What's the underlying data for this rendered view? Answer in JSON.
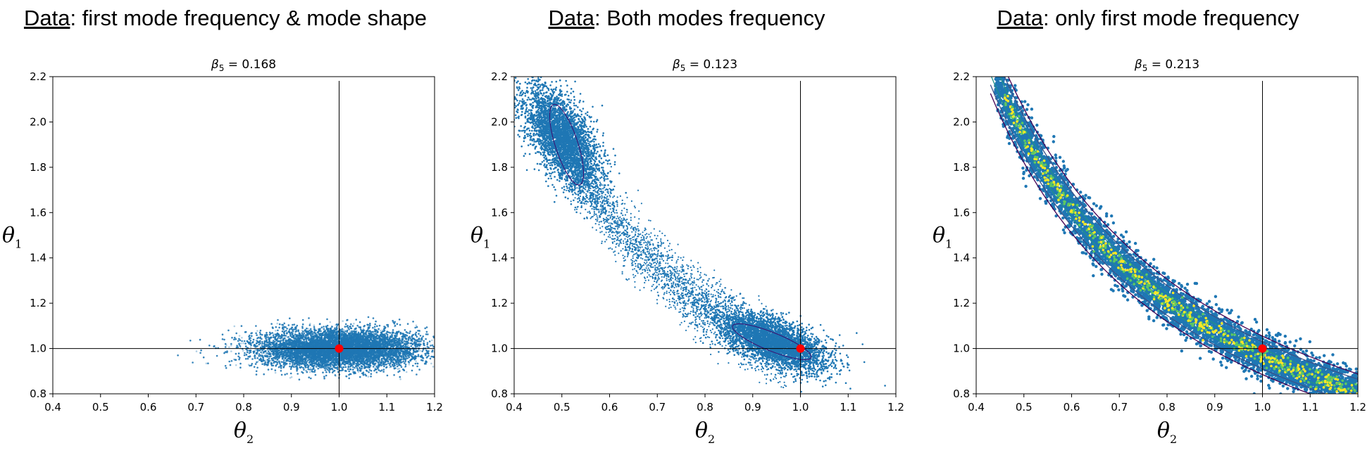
{
  "figure": {
    "headings": [
      {
        "prefix": "Data",
        "suffix": ": first mode frequency & mode shape"
      },
      {
        "prefix": "Data",
        "suffix": ": Both modes frequency"
      },
      {
        "prefix": "Data",
        "suffix": ": only first mode frequency"
      }
    ]
  },
  "chart_data": [
    {
      "type": "scatter",
      "title": "β5 = 0.168",
      "beta_label": "β",
      "beta_sub": "5",
      "beta_value": " = 0.168",
      "xlabel": "θ2",
      "xlabel_main": "θ",
      "xlabel_sub": "2",
      "ylabel": "θ1",
      "ylabel_main": "θ",
      "ylabel_sub": "1",
      "xlim": [
        0.4,
        1.2
      ],
      "ylim": [
        0.8,
        2.2
      ],
      "xticks": [
        "0.4",
        "0.5",
        "0.6",
        "0.7",
        "0.8",
        "0.9",
        "1.0",
        "1.1",
        "1.2"
      ],
      "yticks": [
        "0.8",
        "1.0",
        "1.2",
        "1.4",
        "1.6",
        "1.8",
        "2.0",
        "2.2"
      ],
      "true_value": {
        "x": 1.0,
        "y": 1.0
      },
      "reference_lines": {
        "x": 1.0,
        "y": 1.0
      },
      "point_color": "#1f77b4",
      "marker_color": "#ff0000",
      "distribution": {
        "shape": "ellipse",
        "center": [
          1.0,
          1.0
        ],
        "sd": [
          0.08,
          0.04
        ]
      }
    },
    {
      "type": "scatter",
      "title": "β5 = 0.123",
      "beta_label": "β",
      "beta_sub": "5",
      "beta_value": " = 0.123",
      "xlabel": "θ2",
      "xlabel_main": "θ",
      "xlabel_sub": "2",
      "ylabel": "θ1",
      "ylabel_main": "θ",
      "ylabel_sub": "1",
      "xlim": [
        0.4,
        1.2
      ],
      "ylim": [
        0.8,
        2.2
      ],
      "xticks": [
        "0.4",
        "0.5",
        "0.6",
        "0.7",
        "0.8",
        "0.9",
        "1.0",
        "1.1",
        "1.2"
      ],
      "yticks": [
        "0.8",
        "1.0",
        "1.2",
        "1.4",
        "1.6",
        "1.8",
        "2.0",
        "2.2"
      ],
      "true_value": {
        "x": 1.0,
        "y": 1.0
      },
      "reference_lines": {
        "x": 1.0,
        "y": 1.0
      },
      "point_color": "#1f77b4",
      "marker_color": "#ff0000",
      "distribution": {
        "shape": "two-mode curve",
        "modes": [
          [
            0.5,
            1.93
          ],
          [
            0.94,
            1.03
          ]
        ]
      }
    },
    {
      "type": "scatter",
      "title": "β5 = 0.213",
      "beta_label": "β",
      "beta_sub": "5",
      "beta_value": " = 0.213",
      "xlabel": "θ2",
      "xlabel_main": "θ",
      "xlabel_sub": "2",
      "ylabel": "θ1",
      "ylabel_main": "θ",
      "ylabel_sub": "1",
      "xlim": [
        0.4,
        1.2
      ],
      "ylim": [
        0.8,
        2.2
      ],
      "xticks": [
        "0.4",
        "0.5",
        "0.6",
        "0.7",
        "0.8",
        "0.9",
        "1.0",
        "1.1",
        "1.2"
      ],
      "yticks": [
        "0.8",
        "1.0",
        "1.2",
        "1.4",
        "1.6",
        "1.8",
        "2.0",
        "2.2"
      ],
      "true_value": {
        "x": 1.0,
        "y": 1.0
      },
      "reference_lines": {
        "x": 1.0,
        "y": 1.0
      },
      "point_color": "#1f77b4",
      "marker_color": "#ff0000",
      "contour_colors": [
        "#440154",
        "#3b528b",
        "#21918c",
        "#5ec962",
        "#fde725"
      ],
      "distribution": {
        "shape": "hyperbolic ridge",
        "relation": "θ1·θ2 ≈ 1"
      }
    }
  ]
}
